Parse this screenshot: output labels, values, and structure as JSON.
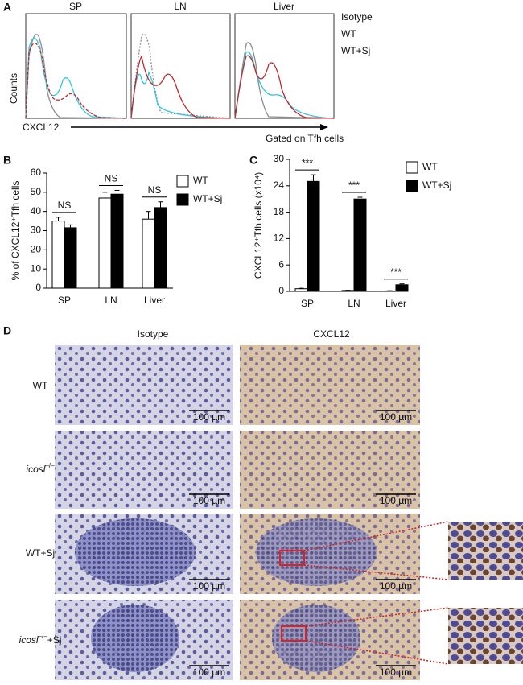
{
  "panel_labels": [
    "A",
    "B",
    "C",
    "D"
  ],
  "panel_a": {
    "panels": [
      "SP",
      "LN",
      "Liver"
    ],
    "legend": [
      {
        "name": "Isotype",
        "color": "#8c8c8c"
      },
      {
        "name": "WT",
        "color": "#2ec6dd"
      },
      {
        "name": "WT+Sj",
        "color": "#c0282a"
      }
    ],
    "y_label": "Counts",
    "x_label": "CXCL12",
    "gate_label": "Gated on Tfh cells"
  },
  "chart_data": [
    {
      "type": "bar",
      "y_label": "% of CXCL12⁺Tfh cells",
      "categories": [
        "SP",
        "LN",
        "Liver"
      ],
      "series": [
        {
          "name": "WT",
          "color": "#ffffff",
          "values": [
            35,
            47,
            36
          ],
          "errors": [
            2,
            3,
            4
          ]
        },
        {
          "name": "WT+Sj",
          "color": "#000000",
          "values": [
            31.5,
            49,
            42
          ],
          "errors": [
            1.5,
            2,
            3
          ]
        }
      ],
      "annotations": [
        "NS",
        "NS",
        "NS"
      ],
      "ylim": [
        0,
        60
      ],
      "yticks": [
        0,
        10,
        20,
        30,
        40,
        50,
        60
      ],
      "legend": "upper right"
    },
    {
      "type": "bar",
      "y_label": "CXCL12⁺Tfh cells (x10⁴)",
      "categories": [
        "SP",
        "LN",
        "Liver"
      ],
      "series": [
        {
          "name": "WT",
          "color": "#ffffff",
          "values": [
            0.6,
            0.2,
            0.1
          ],
          "errors": [
            0.1,
            0.05,
            0.05
          ]
        },
        {
          "name": "WT+Sj",
          "color": "#000000",
          "values": [
            25,
            21,
            1.5
          ],
          "errors": [
            1.5,
            0.4,
            0.2
          ]
        }
      ],
      "annotations": [
        "***",
        "***",
        "***"
      ],
      "ylim": [
        0,
        30
      ],
      "yticks": [
        0,
        6,
        12,
        18,
        24,
        30
      ],
      "legend": "upper right"
    }
  ],
  "panel_d": {
    "columns": [
      "Isotype",
      "CXCL12"
    ],
    "rows": [
      {
        "label": "WT"
      },
      {
        "gene": "icosl",
        "sup": "–/–"
      },
      {
        "label": "WT+Sj"
      },
      {
        "gene": "icosl",
        "sup": "–/–",
        "suffix": "+Sj"
      }
    ],
    "scale_bar": "100 µm"
  }
}
